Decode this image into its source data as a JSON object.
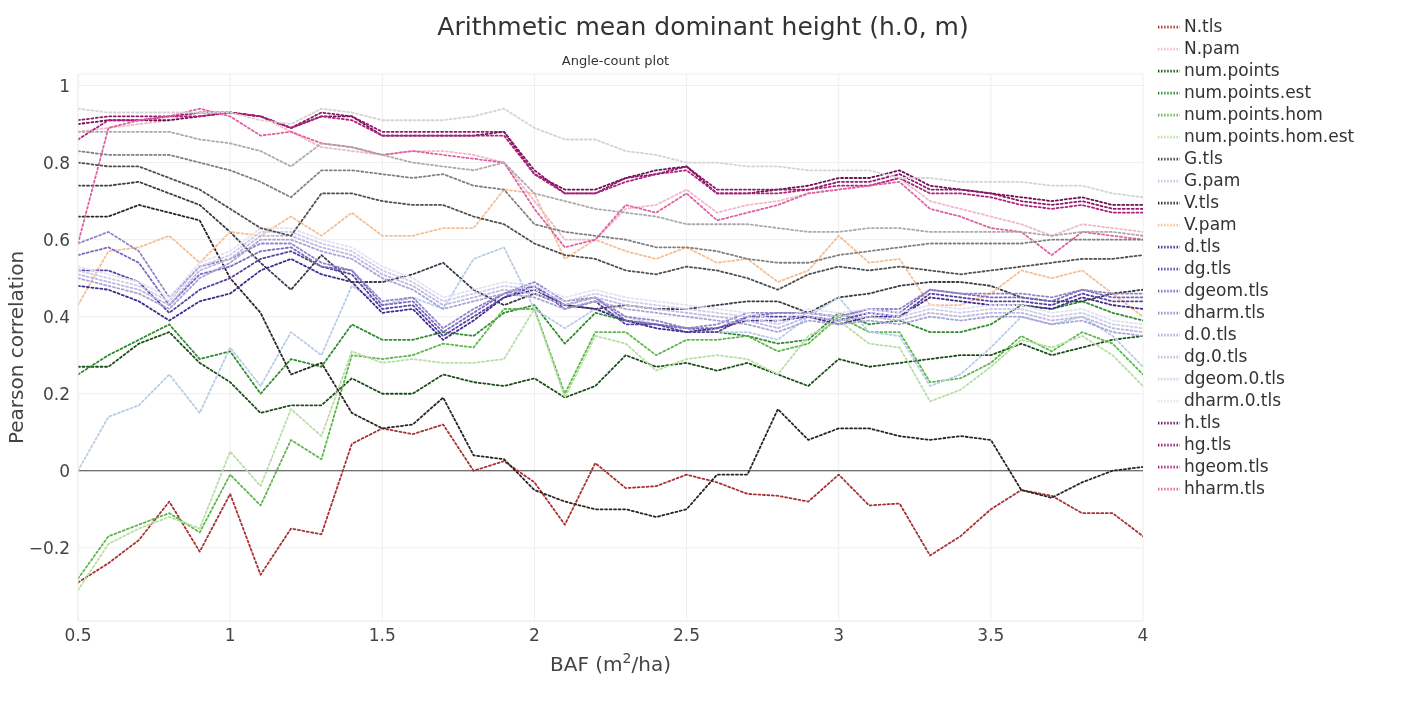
{
  "chart_data": {
    "type": "line",
    "title": "Arithmetic mean dominant height (h.0, m)",
    "subtitle": "Angle-count plot",
    "xlabel": "BAF (m$^{2}$/ha)",
    "ylabel": "Pearson correlation",
    "x": [
      0.5,
      0.6,
      0.7,
      0.8,
      0.9,
      1.0,
      1.1,
      1.2,
      1.3,
      1.4,
      1.5,
      1.6,
      1.7,
      1.8,
      1.9,
      2.0,
      2.1,
      2.2,
      2.3,
      2.4,
      2.5,
      2.6,
      2.7,
      2.8,
      2.9,
      3.0,
      3.1,
      3.2,
      3.3,
      3.4,
      3.5,
      3.6,
      3.7,
      3.8,
      3.9,
      4.0
    ],
    "xlim": [
      0.5,
      4
    ],
    "xticks": [
      0.5,
      1,
      1.5,
      2,
      2.5,
      3,
      3.5,
      4
    ],
    "ylim": [
      -0.39,
      1.03
    ],
    "yticks": [
      -0.2,
      0,
      0.2,
      0.4,
      0.6,
      0.8,
      1
    ],
    "grid": true,
    "legend": "right",
    "marker": "none",
    "line_style": "dotted",
    "ref_lines": [
      {
        "axis": "y",
        "value": 0,
        "color": "#444444"
      }
    ],
    "series": [
      {
        "name": "N.tls",
        "color": "#a83232",
        "values": [
          -0.29,
          -0.24,
          -0.18,
          -0.08,
          -0.21,
          -0.06,
          -0.27,
          -0.15,
          -0.165,
          0.07,
          0.11,
          0.095,
          0.12,
          0.0,
          0.025,
          -0.03,
          -0.14,
          0.02,
          -0.045,
          -0.04,
          -0.01,
          -0.03,
          -0.06,
          -0.065,
          -0.08,
          -0.01,
          -0.09,
          -0.085,
          -0.22,
          -0.17,
          -0.1,
          -0.05,
          -0.065,
          -0.11,
          -0.11,
          -0.17
        ]
      },
      {
        "name": "N.pam",
        "color": "#f0b8c8",
        "values": [
          0.88,
          0.89,
          0.9,
          0.91,
          0.93,
          0.93,
          0.92,
          0.88,
          0.84,
          0.83,
          0.82,
          0.83,
          0.83,
          0.82,
          0.8,
          0.7,
          0.6,
          0.6,
          0.68,
          0.69,
          0.73,
          0.67,
          0.69,
          0.7,
          0.72,
          0.73,
          0.74,
          0.76,
          0.7,
          0.68,
          0.66,
          0.64,
          0.61,
          0.64,
          0.63,
          0.62
        ]
      },
      {
        "name": "num.points",
        "color": "#1a4d1a",
        "values": [
          0.27,
          0.27,
          0.33,
          0.36,
          0.28,
          0.23,
          0.15,
          0.17,
          0.17,
          0.24,
          0.2,
          0.2,
          0.25,
          0.23,
          0.22,
          0.24,
          0.19,
          0.22,
          0.3,
          0.27,
          0.28,
          0.26,
          0.28,
          0.25,
          0.22,
          0.29,
          0.27,
          0.28,
          0.29,
          0.3,
          0.3,
          0.33,
          0.3,
          0.32,
          0.34,
          0.35
        ]
      },
      {
        "name": "num.points.est",
        "color": "#2e8b2e",
        "values": [
          0.25,
          0.3,
          0.34,
          0.38,
          0.29,
          0.31,
          0.2,
          0.29,
          0.27,
          0.38,
          0.34,
          0.34,
          0.36,
          0.35,
          0.41,
          0.43,
          0.33,
          0.41,
          0.39,
          0.38,
          0.37,
          0.36,
          0.35,
          0.33,
          0.34,
          0.41,
          0.38,
          0.39,
          0.36,
          0.36,
          0.38,
          0.43,
          0.42,
          0.44,
          0.41,
          0.39
        ]
      },
      {
        "name": "num.points.hom",
        "color": "#5cb84a",
        "values": [
          -0.28,
          -0.17,
          -0.14,
          -0.11,
          -0.16,
          -0.01,
          -0.09,
          0.08,
          0.03,
          0.3,
          0.29,
          0.3,
          0.33,
          0.32,
          0.42,
          0.42,
          0.2,
          0.36,
          0.36,
          0.3,
          0.34,
          0.34,
          0.35,
          0.31,
          0.33,
          0.4,
          0.36,
          0.36,
          0.23,
          0.24,
          0.28,
          0.35,
          0.31,
          0.36,
          0.33,
          0.25
        ]
      },
      {
        "name": "num.points.hom.est",
        "color": "#b8dea4",
        "values": [
          -0.31,
          -0.19,
          -0.15,
          -0.12,
          -0.15,
          0.05,
          -0.04,
          0.16,
          0.09,
          0.31,
          0.28,
          0.29,
          0.28,
          0.28,
          0.29,
          0.42,
          0.19,
          0.35,
          0.33,
          0.26,
          0.29,
          0.3,
          0.29,
          0.25,
          0.35,
          0.39,
          0.33,
          0.32,
          0.18,
          0.21,
          0.27,
          0.34,
          0.32,
          0.35,
          0.3,
          0.22
        ]
      },
      {
        "name": "G.tls",
        "color": "#3a3a4a",
        "values": [
          0.74,
          0.74,
          0.75,
          0.72,
          0.69,
          0.62,
          0.54,
          0.47,
          0.56,
          0.49,
          0.49,
          0.51,
          0.54,
          0.47,
          0.43,
          0.46,
          0.43,
          0.42,
          0.43,
          0.42,
          0.42,
          0.43,
          0.44,
          0.44,
          0.41,
          0.45,
          0.46,
          0.48,
          0.49,
          0.49,
          0.48,
          0.45,
          0.44,
          0.44,
          0.46,
          0.47
        ]
      },
      {
        "name": "G.pam",
        "color": "#b8cce8",
        "values": [
          0.0,
          0.14,
          0.17,
          0.25,
          0.15,
          0.32,
          0.22,
          0.36,
          0.3,
          0.48,
          0.43,
          0.45,
          0.42,
          0.55,
          0.58,
          0.42,
          0.37,
          0.42,
          0.4,
          0.38,
          0.37,
          0.36,
          0.36,
          0.34,
          0.4,
          0.45,
          0.36,
          0.35,
          0.22,
          0.25,
          0.32,
          0.4,
          0.38,
          0.4,
          0.35,
          0.27
        ]
      },
      {
        "name": "V.tls",
        "color": "#2a2420",
        "values": [
          0.66,
          0.66,
          0.69,
          0.67,
          0.65,
          0.5,
          0.41,
          0.25,
          0.28,
          0.15,
          0.11,
          0.12,
          0.19,
          0.04,
          0.03,
          -0.05,
          -0.08,
          -0.1,
          -0.1,
          -0.12,
          -0.1,
          -0.01,
          -0.01,
          0.16,
          0.08,
          0.11,
          0.11,
          0.09,
          0.08,
          0.09,
          0.08,
          -0.05,
          -0.07,
          -0.03,
          0.0,
          0.01
        ]
      },
      {
        "name": "V.pam",
        "color": "#f5bf94",
        "values": [
          0.43,
          0.57,
          0.58,
          0.61,
          0.54,
          0.62,
          0.61,
          0.66,
          0.61,
          0.67,
          0.61,
          0.61,
          0.63,
          0.63,
          0.73,
          0.72,
          0.55,
          0.6,
          0.57,
          0.55,
          0.58,
          0.54,
          0.55,
          0.49,
          0.52,
          0.61,
          0.54,
          0.55,
          0.43,
          0.43,
          0.46,
          0.52,
          0.5,
          0.52,
          0.46,
          0.4
        ]
      },
      {
        "name": "d.tls",
        "color": "#3d2a8a",
        "values": [
          0.48,
          0.47,
          0.44,
          0.39,
          0.44,
          0.46,
          0.52,
          0.55,
          0.51,
          0.49,
          0.41,
          0.42,
          0.34,
          0.39,
          0.45,
          0.47,
          0.43,
          0.42,
          0.39,
          0.37,
          0.36,
          0.37,
          0.39,
          0.39,
          0.4,
          0.38,
          0.4,
          0.4,
          0.45,
          0.44,
          0.43,
          0.43,
          0.42,
          0.45,
          0.43,
          0.42
        ]
      },
      {
        "name": "dg.tls",
        "color": "#5a3fa0",
        "values": [
          0.52,
          0.52,
          0.49,
          0.41,
          0.47,
          0.5,
          0.55,
          0.57,
          0.53,
          0.51,
          0.42,
          0.43,
          0.35,
          0.4,
          0.45,
          0.48,
          0.42,
          0.44,
          0.38,
          0.38,
          0.36,
          0.36,
          0.4,
          0.4,
          0.4,
          0.39,
          0.41,
          0.4,
          0.46,
          0.45,
          0.44,
          0.44,
          0.43,
          0.46,
          0.44,
          0.44
        ]
      },
      {
        "name": "dgeom.tls",
        "color": "#7a6abf",
        "values": [
          0.56,
          0.58,
          0.54,
          0.43,
          0.51,
          0.53,
          0.57,
          0.58,
          0.53,
          0.52,
          0.43,
          0.44,
          0.36,
          0.41,
          0.46,
          0.48,
          0.43,
          0.45,
          0.39,
          0.38,
          0.37,
          0.37,
          0.4,
          0.41,
          0.41,
          0.4,
          0.42,
          0.41,
          0.47,
          0.46,
          0.45,
          0.45,
          0.44,
          0.47,
          0.45,
          0.45
        ]
      },
      {
        "name": "dharm.tls",
        "color": "#9285c8",
        "values": [
          0.59,
          0.62,
          0.57,
          0.45,
          0.53,
          0.55,
          0.59,
          0.59,
          0.54,
          0.52,
          0.44,
          0.45,
          0.37,
          0.42,
          0.46,
          0.49,
          0.44,
          0.45,
          0.4,
          0.39,
          0.37,
          0.38,
          0.41,
          0.41,
          0.41,
          0.4,
          0.42,
          0.42,
          0.47,
          0.46,
          0.46,
          0.46,
          0.45,
          0.47,
          0.46,
          0.46
        ]
      },
      {
        "name": "d.0.tls",
        "color": "#a9a3d6",
        "values": [
          0.5,
          0.48,
          0.46,
          0.42,
          0.5,
          0.54,
          0.6,
          0.6,
          0.57,
          0.55,
          0.5,
          0.47,
          0.42,
          0.44,
          0.46,
          0.45,
          0.42,
          0.44,
          0.42,
          0.41,
          0.4,
          0.39,
          0.38,
          0.36,
          0.39,
          0.38,
          0.39,
          0.38,
          0.4,
          0.39,
          0.4,
          0.4,
          0.38,
          0.39,
          0.36,
          0.35
        ]
      },
      {
        "name": "dg.0.tls",
        "color": "#bdb8e0",
        "values": [
          0.51,
          0.49,
          0.47,
          0.43,
          0.52,
          0.55,
          0.61,
          0.61,
          0.58,
          0.56,
          0.51,
          0.48,
          0.43,
          0.45,
          0.47,
          0.46,
          0.43,
          0.45,
          0.43,
          0.42,
          0.41,
          0.4,
          0.39,
          0.37,
          0.4,
          0.39,
          0.4,
          0.39,
          0.41,
          0.4,
          0.41,
          0.41,
          0.39,
          0.4,
          0.37,
          0.36
        ]
      },
      {
        "name": "dgeom.0.tls",
        "color": "#d0cdea",
        "values": [
          0.52,
          0.5,
          0.48,
          0.44,
          0.53,
          0.56,
          0.62,
          0.62,
          0.59,
          0.57,
          0.52,
          0.49,
          0.44,
          0.46,
          0.48,
          0.47,
          0.44,
          0.46,
          0.44,
          0.43,
          0.42,
          0.41,
          0.4,
          0.38,
          0.41,
          0.4,
          0.41,
          0.4,
          0.42,
          0.41,
          0.42,
          0.42,
          0.4,
          0.41,
          0.38,
          0.37
        ]
      },
      {
        "name": "dharm.0.tls",
        "color": "#e4e2f2",
        "values": [
          0.53,
          0.51,
          0.49,
          0.45,
          0.54,
          0.57,
          0.63,
          0.63,
          0.6,
          0.58,
          0.53,
          0.5,
          0.45,
          0.47,
          0.49,
          0.48,
          0.45,
          0.47,
          0.45,
          0.44,
          0.43,
          0.42,
          0.41,
          0.39,
          0.42,
          0.41,
          0.42,
          0.41,
          0.43,
          0.42,
          0.43,
          0.43,
          0.41,
          0.42,
          0.39,
          0.38
        ]
      },
      {
        "name": "h.tls",
        "color": "#6b1050",
        "values": [
          0.9,
          0.91,
          0.91,
          0.91,
          0.92,
          0.93,
          0.92,
          0.89,
          0.92,
          0.92,
          0.87,
          0.87,
          0.87,
          0.87,
          0.88,
          0.77,
          0.73,
          0.73,
          0.76,
          0.78,
          0.79,
          0.72,
          0.72,
          0.73,
          0.74,
          0.76,
          0.76,
          0.78,
          0.74,
          0.73,
          0.72,
          0.71,
          0.7,
          0.71,
          0.69,
          0.69
        ]
      },
      {
        "name": "hg.tls",
        "color": "#8b1a6b",
        "values": [
          0.91,
          0.92,
          0.92,
          0.92,
          0.93,
          0.93,
          0.92,
          0.89,
          0.93,
          0.92,
          0.88,
          0.88,
          0.88,
          0.88,
          0.88,
          0.78,
          0.72,
          0.72,
          0.76,
          0.77,
          0.79,
          0.73,
          0.73,
          0.73,
          0.73,
          0.75,
          0.75,
          0.77,
          0.73,
          0.73,
          0.72,
          0.7,
          0.69,
          0.7,
          0.68,
          0.68
        ]
      },
      {
        "name": "hgeom.tls",
        "color": "#b0207a",
        "values": [
          0.86,
          0.91,
          0.91,
          0.92,
          0.92,
          0.93,
          0.92,
          0.89,
          0.92,
          0.91,
          0.87,
          0.87,
          0.87,
          0.87,
          0.87,
          0.77,
          0.72,
          0.72,
          0.75,
          0.77,
          0.78,
          0.72,
          0.72,
          0.72,
          0.73,
          0.74,
          0.74,
          0.76,
          0.72,
          0.72,
          0.71,
          0.69,
          0.68,
          0.69,
          0.67,
          0.67
        ]
      },
      {
        "name": "hharm.tls",
        "color": "#e060a0",
        "values": [
          0.59,
          0.89,
          0.91,
          0.92,
          0.94,
          0.92,
          0.87,
          0.88,
          0.85,
          0.84,
          0.82,
          0.83,
          0.82,
          0.81,
          0.8,
          0.68,
          0.58,
          0.6,
          0.69,
          0.67,
          0.72,
          0.65,
          0.67,
          0.69,
          0.72,
          0.73,
          0.74,
          0.75,
          0.68,
          0.66,
          0.63,
          0.62,
          0.56,
          0.62,
          0.61,
          0.6
        ]
      },
      {
        "color": "#d4d4d4",
        "values": [
          0.94,
          0.93,
          0.93,
          0.93,
          0.93,
          0.93,
          0.91,
          0.9,
          0.94,
          0.93,
          0.91,
          0.91,
          0.91,
          0.92,
          0.94,
          0.89,
          0.86,
          0.86,
          0.83,
          0.82,
          0.8,
          0.8,
          0.79,
          0.79,
          0.78,
          0.78,
          0.78,
          0.76,
          0.76,
          0.75,
          0.75,
          0.75,
          0.74,
          0.74,
          0.72,
          0.71
        ]
      },
      {
        "color": "#aaaaaa",
        "values": [
          0.88,
          0.88,
          0.88,
          0.88,
          0.86,
          0.85,
          0.83,
          0.79,
          0.85,
          0.84,
          0.82,
          0.8,
          0.79,
          0.78,
          0.8,
          0.72,
          0.7,
          0.68,
          0.67,
          0.66,
          0.64,
          0.64,
          0.64,
          0.63,
          0.62,
          0.62,
          0.63,
          0.63,
          0.62,
          0.62,
          0.62,
          0.62,
          0.61,
          0.62,
          0.62,
          0.61
        ]
      },
      {
        "color": "#808080",
        "values": [
          0.83,
          0.82,
          0.82,
          0.82,
          0.8,
          0.78,
          0.75,
          0.71,
          0.78,
          0.78,
          0.77,
          0.76,
          0.77,
          0.74,
          0.73,
          0.64,
          0.62,
          0.61,
          0.6,
          0.58,
          0.58,
          0.57,
          0.55,
          0.54,
          0.54,
          0.56,
          0.57,
          0.58,
          0.59,
          0.59,
          0.59,
          0.59,
          0.6,
          0.6,
          0.6,
          0.6
        ]
      },
      {
        "color": "#505050",
        "values": [
          0.8,
          0.79,
          0.79,
          0.76,
          0.73,
          0.68,
          0.63,
          0.61,
          0.72,
          0.72,
          0.7,
          0.69,
          0.69,
          0.66,
          0.64,
          0.59,
          0.56,
          0.55,
          0.52,
          0.51,
          0.53,
          0.52,
          0.5,
          0.47,
          0.51,
          0.53,
          0.52,
          0.53,
          0.52,
          0.51,
          0.52,
          0.53,
          0.54,
          0.55,
          0.55,
          0.56
        ]
      }
    ]
  }
}
